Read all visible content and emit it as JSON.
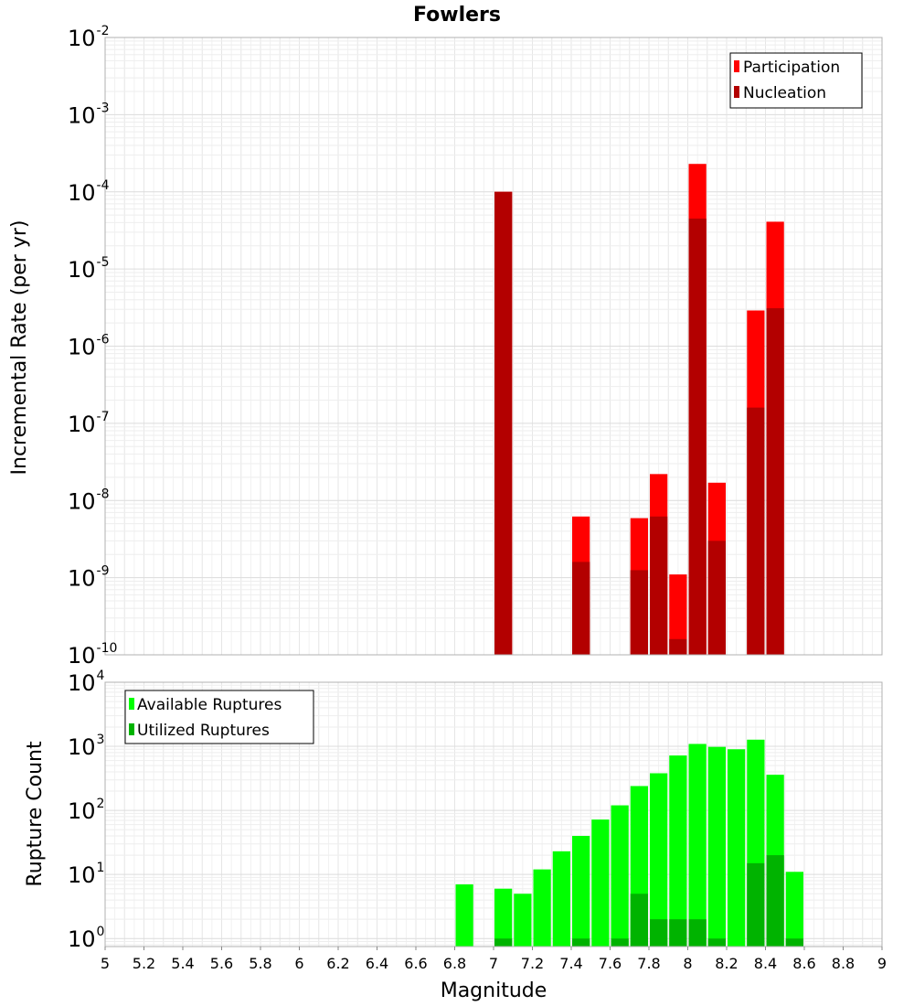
{
  "chart_data": [
    {
      "type": "bar",
      "title": "Fowlers",
      "ylabel": "Incremental Rate (per yr)",
      "xlim": [
        5,
        9
      ],
      "ylim": [
        1e-10,
        0.01
      ],
      "yscale": "log",
      "bin_width": 0.1,
      "grid": true,
      "legend_position": "top-right",
      "series": [
        {
          "name": "Participation",
          "color": "#ff0000",
          "x": [
            7.05,
            7.45,
            7.75,
            7.85,
            7.95,
            8.05,
            8.15,
            8.35,
            8.45
          ],
          "values": [
            0.0001,
            6.2e-09,
            5.9e-09,
            2.2e-08,
            1.1e-09,
            0.00023,
            1.7e-08,
            2.9e-06,
            4.1e-05
          ]
        },
        {
          "name": "Nucleation",
          "color": "#b30000",
          "x": [
            7.05,
            7.45,
            7.75,
            7.85,
            7.95,
            8.05,
            8.15,
            8.35,
            8.45
          ],
          "values": [
            0.0001,
            1.6e-09,
            1.25e-09,
            6.2e-09,
            1.6e-10,
            4.5e-05,
            3e-09,
            1.6e-07,
            3.1e-06
          ]
        }
      ]
    },
    {
      "type": "bar",
      "xlabel": "Magnitude",
      "ylabel": "Rupture Count",
      "xlim": [
        5,
        9
      ],
      "ylim": [
        0.75,
        10000
      ],
      "yscale": "log",
      "bin_width": 0.1,
      "grid": true,
      "legend_position": "top-left",
      "series": [
        {
          "name": "Available Ruptures",
          "color": "#00ff00",
          "x": [
            6.85,
            7.05,
            7.15,
            7.25,
            7.35,
            7.45,
            7.55,
            7.65,
            7.75,
            7.85,
            7.95,
            8.05,
            8.15,
            8.25,
            8.35,
            8.45,
            8.55
          ],
          "values": [
            7,
            6,
            5,
            12,
            23,
            40,
            72,
            120,
            240,
            380,
            720,
            1090,
            980,
            900,
            1270,
            360,
            11
          ]
        },
        {
          "name": "Utilized Ruptures",
          "color": "#00b300",
          "x": [
            7.05,
            7.45,
            7.65,
            7.75,
            7.85,
            7.95,
            8.05,
            8.15,
            8.35,
            8.45,
            8.55
          ],
          "values": [
            1,
            1,
            1,
            5,
            2,
            2,
            2,
            1,
            15,
            20,
            1
          ]
        }
      ]
    }
  ],
  "x_ticks": [
    "5",
    "5.2",
    "5.4",
    "5.6",
    "5.8",
    "6",
    "6.2",
    "6.4",
    "6.6",
    "6.8",
    "7",
    "7.2",
    "7.4",
    "7.6",
    "7.8",
    "8",
    "8.2",
    "8.4",
    "8.6",
    "8.8",
    "9"
  ],
  "top_y_ticks": [
    {
      "base": "10",
      "exp": "-2",
      "value": 0.01
    },
    {
      "base": "10",
      "exp": "-3",
      "value": 0.001
    },
    {
      "base": "10",
      "exp": "-4",
      "value": 0.0001
    },
    {
      "base": "10",
      "exp": "-5",
      "value": 1e-05
    },
    {
      "base": "10",
      "exp": "-6",
      "value": 1e-06
    },
    {
      "base": "10",
      "exp": "-7",
      "value": 1e-07
    },
    {
      "base": "10",
      "exp": "-8",
      "value": 1e-08
    },
    {
      "base": "10",
      "exp": "-9",
      "value": 1e-09
    },
    {
      "base": "10",
      "exp": "-10",
      "value": 1e-10
    }
  ],
  "bottom_y_ticks": [
    {
      "base": "10",
      "exp": "4",
      "value": 10000
    },
    {
      "base": "10",
      "exp": "3",
      "value": 1000
    },
    {
      "base": "10",
      "exp": "2",
      "value": 100
    },
    {
      "base": "10",
      "exp": "1",
      "value": 10
    },
    {
      "base": "10",
      "exp": "0",
      "value": 1
    }
  ]
}
